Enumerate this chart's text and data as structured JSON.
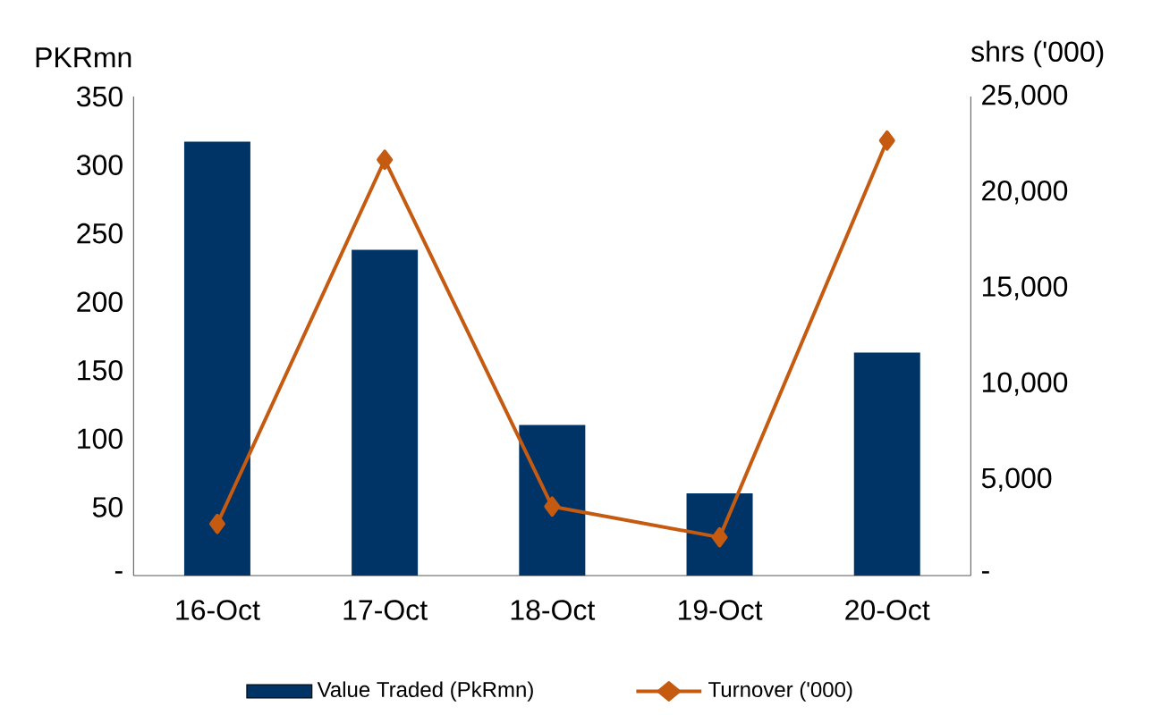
{
  "chart_data": {
    "type": "bar",
    "ylabel": "PKRmn",
    "y2label": "shrs ('000)",
    "categories": [
      "16-Oct",
      "17-Oct",
      "18-Oct",
      "19-Oct",
      "20-Oct"
    ],
    "series": [
      {
        "name": "Value Traded (PkRmn)",
        "color": "#003366",
        "values": [
          317,
          238,
          110,
          60,
          163
        ]
      },
      {
        "name": "Turnover ('000)",
        "type": "line",
        "axis": "y2",
        "color": "#c55a11",
        "marker": "diamond",
        "values": [
          2700,
          21700,
          3600,
          2000,
          22700
        ]
      }
    ],
    "ylim": [
      0,
      350
    ],
    "yticks": [
      {
        "value": 0,
        "label": "-"
      },
      50,
      100,
      150,
      200,
      250,
      300,
      350
    ],
    "y2lim": [
      0,
      25000
    ],
    "y2ticks": [
      {
        "value": 0,
        "label": "-"
      },
      {
        "value": 5000,
        "label": "5,000"
      },
      {
        "value": 10000,
        "label": "10,000"
      },
      {
        "value": 15000,
        "label": "15,000"
      },
      {
        "value": 20000,
        "label": "20,000"
      },
      {
        "value": 25000,
        "label": "25,000"
      }
    ],
    "legend": "bottom",
    "grid": false
  }
}
